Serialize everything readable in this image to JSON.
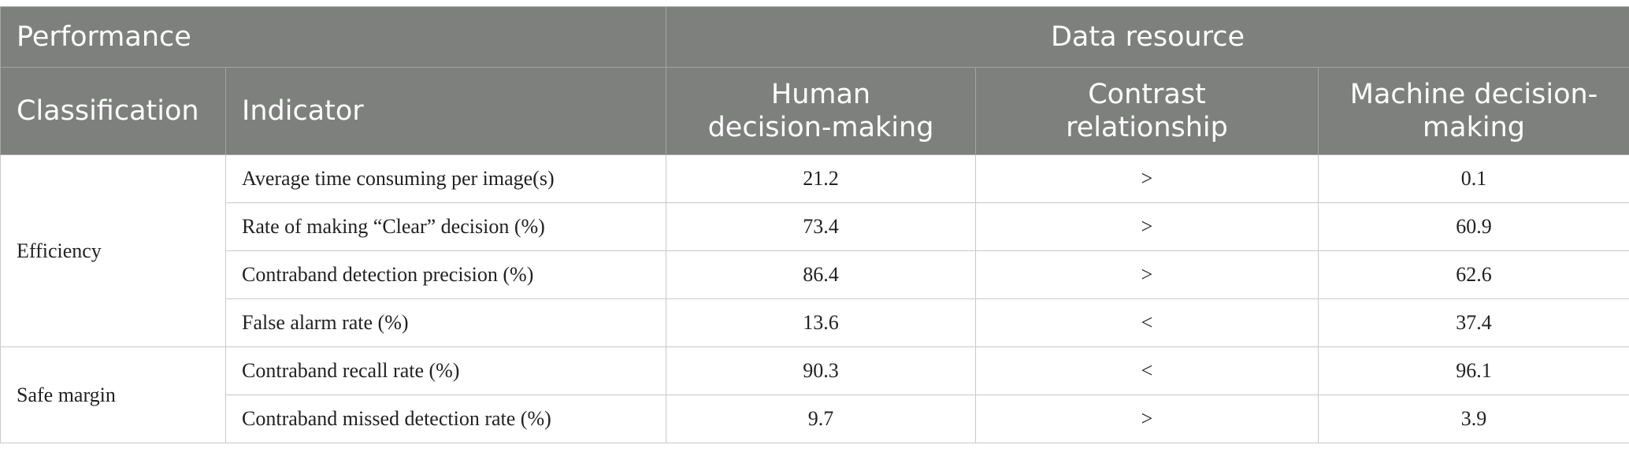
{
  "header": {
    "row1": [
      "Performance",
      "Data resource"
    ],
    "row2": [
      "Classification",
      "Indicator",
      "Human decision-making",
      "Contrast relationship",
      "Machine decision-making"
    ]
  },
  "groups": [
    {
      "classification": "Efficiency",
      "rows": [
        {
          "indicator": "Average time consuming per image(s)",
          "human": 21.2,
          "contrast": ">",
          "machine": 0.1
        },
        {
          "indicator": "Rate of making “Clear” decision (%)",
          "human": 73.4,
          "contrast": ">",
          "machine": 60.9
        },
        {
          "indicator": "Contraband detection precision (%)",
          "human": 86.4,
          "contrast": ">",
          "machine": 62.6
        },
        {
          "indicator": "False alarm rate (%)",
          "human": 13.6,
          "contrast": "<",
          "machine": 37.4
        }
      ]
    },
    {
      "classification": "Safe margin",
      "rows": [
        {
          "indicator": "Contraband recall rate (%)",
          "human": 90.3,
          "contrast": "<",
          "machine": 96.1
        },
        {
          "indicator": "Contraband missed detection rate (%)",
          "human": 9.7,
          "contrast": ">",
          "machine": 3.9
        }
      ]
    }
  ]
}
